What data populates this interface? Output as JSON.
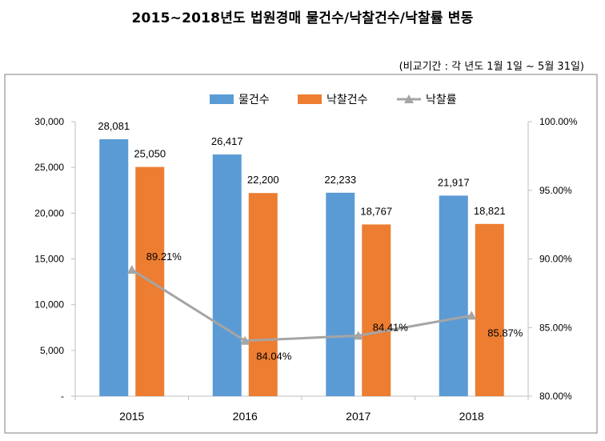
{
  "chart_data": {
    "type": "bar",
    "title": "2015~2018년도 법원경매 물건수/낙찰건수/낙찰률 변동",
    "subtitle": "(비교기간 : 각 년도 1월 1일 ~ 5월 31일)",
    "categories": [
      "2015",
      "2016",
      "2017",
      "2018"
    ],
    "series": [
      {
        "name": "물건수",
        "kind": "bar",
        "axis": "left",
        "color": "#5B9BD5",
        "values": [
          28081,
          26417,
          22233,
          21917
        ],
        "labels": [
          "28,081",
          "26,417",
          "22,233",
          "21,917"
        ]
      },
      {
        "name": "낙찰건수",
        "kind": "bar",
        "axis": "left",
        "color": "#ED7D31",
        "values": [
          25050,
          22200,
          18767,
          18821
        ],
        "labels": [
          "25,050",
          "22,200",
          "18,767",
          "18,821"
        ]
      },
      {
        "name": "낙찰률",
        "kind": "line",
        "axis": "right",
        "color": "#A5A5A5",
        "values": [
          89.21,
          84.04,
          84.41,
          85.87
        ],
        "labels": [
          "89.21%",
          "84.04%",
          "84.41%",
          "85.87%"
        ]
      }
    ],
    "y_left": {
      "min": 0,
      "max": 30000,
      "step": 5000,
      "tick_labels": [
        "-",
        "5,000",
        "10,000",
        "15,000",
        "20,000",
        "25,000",
        "30,000"
      ]
    },
    "y_right": {
      "min": 80,
      "max": 100,
      "step": 5,
      "tick_labels": [
        "80.00%",
        "85.00%",
        "90.00%",
        "95.00%",
        "100.00%"
      ]
    },
    "legend_position": "top",
    "grid": false
  }
}
